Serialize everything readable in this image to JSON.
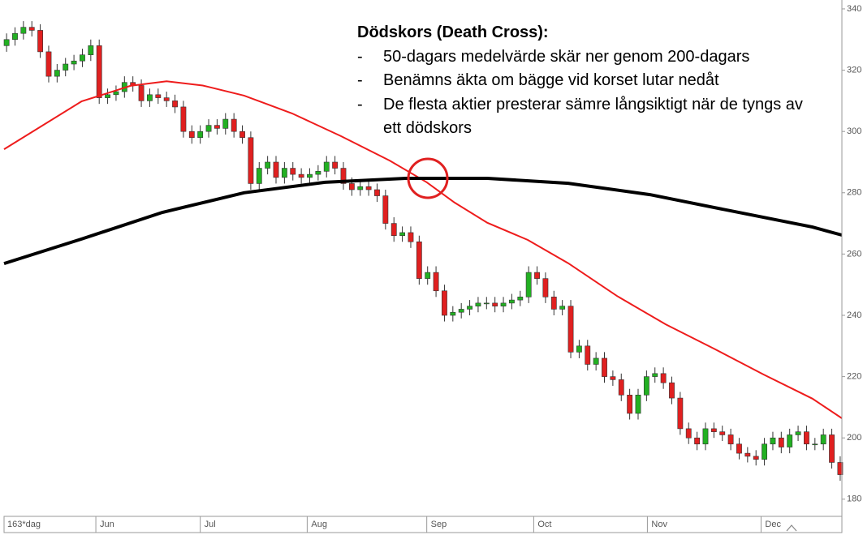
{
  "chart_data": {
    "type": "candlestick",
    "annotation": {
      "title": "Dödskors (Death Cross):",
      "bullets": [
        "50-dagars medelvärde skär ner genom 200-dagars",
        "Benämns äkta om bägge vid korset lutar nedåt",
        "De flesta aktier presterar sämre långsiktigt när de tyngs av ett dödskors"
      ]
    },
    "period_label": "163*dag",
    "up_color": "#22b022",
    "down_color": "#e02020",
    "x": [
      0,
      1,
      2,
      3,
      4,
      5,
      6,
      7,
      8,
      9,
      10,
      11,
      12,
      13,
      14,
      15,
      16,
      17,
      18,
      19,
      20,
      21,
      22,
      23,
      24,
      25,
      26,
      27,
      28,
      29,
      30,
      31,
      32,
      33,
      34,
      35,
      36,
      37,
      38,
      39,
      40,
      41,
      42,
      43,
      44,
      45,
      46,
      47,
      48,
      49,
      50,
      51,
      52,
      53,
      54,
      55,
      56,
      57,
      58,
      59,
      60,
      61,
      62,
      63,
      64,
      65,
      66,
      67,
      68,
      69,
      70,
      71,
      72,
      73,
      74,
      75,
      76,
      77,
      78,
      79,
      80,
      81,
      82,
      83,
      84,
      85,
      86,
      87,
      88,
      89,
      90,
      91,
      92,
      93,
      94,
      95,
      96,
      97,
      98,
      99
    ],
    "open": [
      328,
      330,
      332,
      334,
      333,
      326,
      318,
      320,
      322,
      323,
      325,
      328,
      311,
      312,
      313,
      316,
      315,
      310,
      312,
      311,
      310,
      308,
      300,
      298,
      300,
      302,
      301,
      304,
      300,
      298,
      283,
      288,
      290,
      285,
      288,
      286,
      285,
      286,
      287,
      290,
      288,
      283,
      281,
      282,
      281,
      279,
      270,
      266,
      267,
      264,
      252,
      254,
      248,
      240,
      241,
      242,
      243,
      244,
      244,
      243,
      244,
      245,
      246,
      254,
      252,
      246,
      242,
      243,
      228,
      230,
      224,
      226,
      220,
      219,
      214,
      208,
      214,
      220,
      221,
      218,
      213,
      203,
      200,
      198,
      203,
      202,
      201,
      198,
      195,
      194,
      193,
      198,
      200,
      197,
      201,
      202,
      198,
      198,
      201,
      192
    ],
    "high": [
      332,
      334,
      336,
      336,
      335,
      328,
      322,
      324,
      325,
      327,
      330,
      330,
      314,
      315,
      318,
      318,
      317,
      314,
      314,
      313,
      312,
      310,
      302,
      302,
      304,
      304,
      306,
      306,
      302,
      300,
      290,
      292,
      292,
      290,
      290,
      288,
      288,
      289,
      292,
      292,
      290,
      285,
      284,
      284,
      283,
      281,
      272,
      269,
      269,
      266,
      256,
      256,
      250,
      243,
      244,
      245,
      246,
      246,
      246,
      246,
      247,
      248,
      256,
      256,
      254,
      248,
      245,
      245,
      232,
      232,
      228,
      228,
      222,
      221,
      216,
      216,
      222,
      223,
      223,
      220,
      215,
      205,
      202,
      205,
      205,
      204,
      203,
      200,
      197,
      196,
      200,
      202,
      202,
      203,
      204,
      204,
      200,
      203,
      203,
      194
    ],
    "low": [
      326,
      328,
      330,
      331,
      324,
      316,
      316,
      318,
      320,
      321,
      323,
      309,
      309,
      310,
      311,
      313,
      308,
      308,
      309,
      308,
      306,
      298,
      296,
      296,
      298,
      299,
      299,
      298,
      296,
      281,
      281,
      286,
      283,
      283,
      284,
      283,
      283,
      284,
      285,
      286,
      281,
      279,
      279,
      279,
      277,
      268,
      264,
      264,
      262,
      250,
      250,
      246,
      238,
      238,
      239,
      240,
      241,
      242,
      241,
      241,
      242,
      243,
      244,
      250,
      244,
      240,
      240,
      226,
      226,
      222,
      222,
      218,
      217,
      212,
      206,
      206,
      212,
      218,
      216,
      211,
      201,
      198,
      196,
      196,
      200,
      199,
      196,
      193,
      192,
      191,
      191,
      196,
      195,
      195,
      199,
      196,
      196,
      196,
      190,
      186
    ],
    "close": [
      330,
      332,
      334,
      333,
      326,
      318,
      320,
      322,
      323,
      325,
      328,
      311,
      312,
      313,
      316,
      315,
      310,
      312,
      311,
      310,
      308,
      300,
      298,
      300,
      302,
      301,
      304,
      300,
      298,
      283,
      288,
      290,
      285,
      288,
      286,
      285,
      286,
      287,
      290,
      288,
      283,
      281,
      282,
      281,
      279,
      270,
      266,
      267,
      264,
      252,
      254,
      248,
      240,
      241,
      242,
      243,
      244,
      244,
      243,
      244,
      245,
      246,
      254,
      252,
      246,
      242,
      243,
      228,
      230,
      224,
      226,
      220,
      219,
      214,
      208,
      214,
      220,
      221,
      218,
      213,
      203,
      200,
      198,
      203,
      202,
      201,
      198,
      195,
      194,
      193,
      198,
      200,
      197,
      201,
      202,
      198,
      198,
      201,
      192,
      188
    ],
    "lines": [
      {
        "color": "#ee1c1c",
        "x": [
          -0.3,
          8.9,
          14.7,
          19,
          23.3,
          28.2,
          33.9,
          39.7,
          45.5,
          49.9,
          53.2,
          57.1,
          61.9,
          66.7,
          72.5,
          78.3,
          84.1,
          89.9,
          95.7,
          99.2
        ],
        "values": [
          294.2,
          309.8,
          314.9,
          316.4,
          315,
          311.7,
          305.9,
          298.5,
          290.5,
          283.4,
          276.8,
          270.2,
          264.6,
          257,
          246.3,
          237,
          229,
          220.7,
          212.8,
          206.4
        ]
      },
      {
        "color": "#000000",
        "x": [
          -0.3,
          8.9,
          18.5,
          28.2,
          37.8,
          47.4,
          57.1,
          66.7,
          76.4,
          86,
          95.7,
          99.2
        ],
        "values": [
          256.9,
          264.9,
          273.6,
          280,
          283.4,
          284.7,
          284.7,
          283.1,
          279.4,
          274.1,
          268.8,
          266.2
        ]
      }
    ],
    "xlim": [
      -0.3,
      99.2
    ],
    "xticks": [
      {
        "value": 10.6,
        "label": "Jun"
      },
      {
        "value": 23,
        "label": "Jul"
      },
      {
        "value": 35.7,
        "label": "Aug"
      },
      {
        "value": 49.9,
        "label": "Sep"
      },
      {
        "value": 62.6,
        "label": "Oct"
      },
      {
        "value": 76.1,
        "label": "Nov"
      },
      {
        "value": 89.6,
        "label": "Dec"
      }
    ],
    "ylim": [
      174.4,
      342.9
    ],
    "yticks": [
      180,
      200,
      220,
      240,
      260,
      280,
      300,
      320,
      340
    ]
  }
}
